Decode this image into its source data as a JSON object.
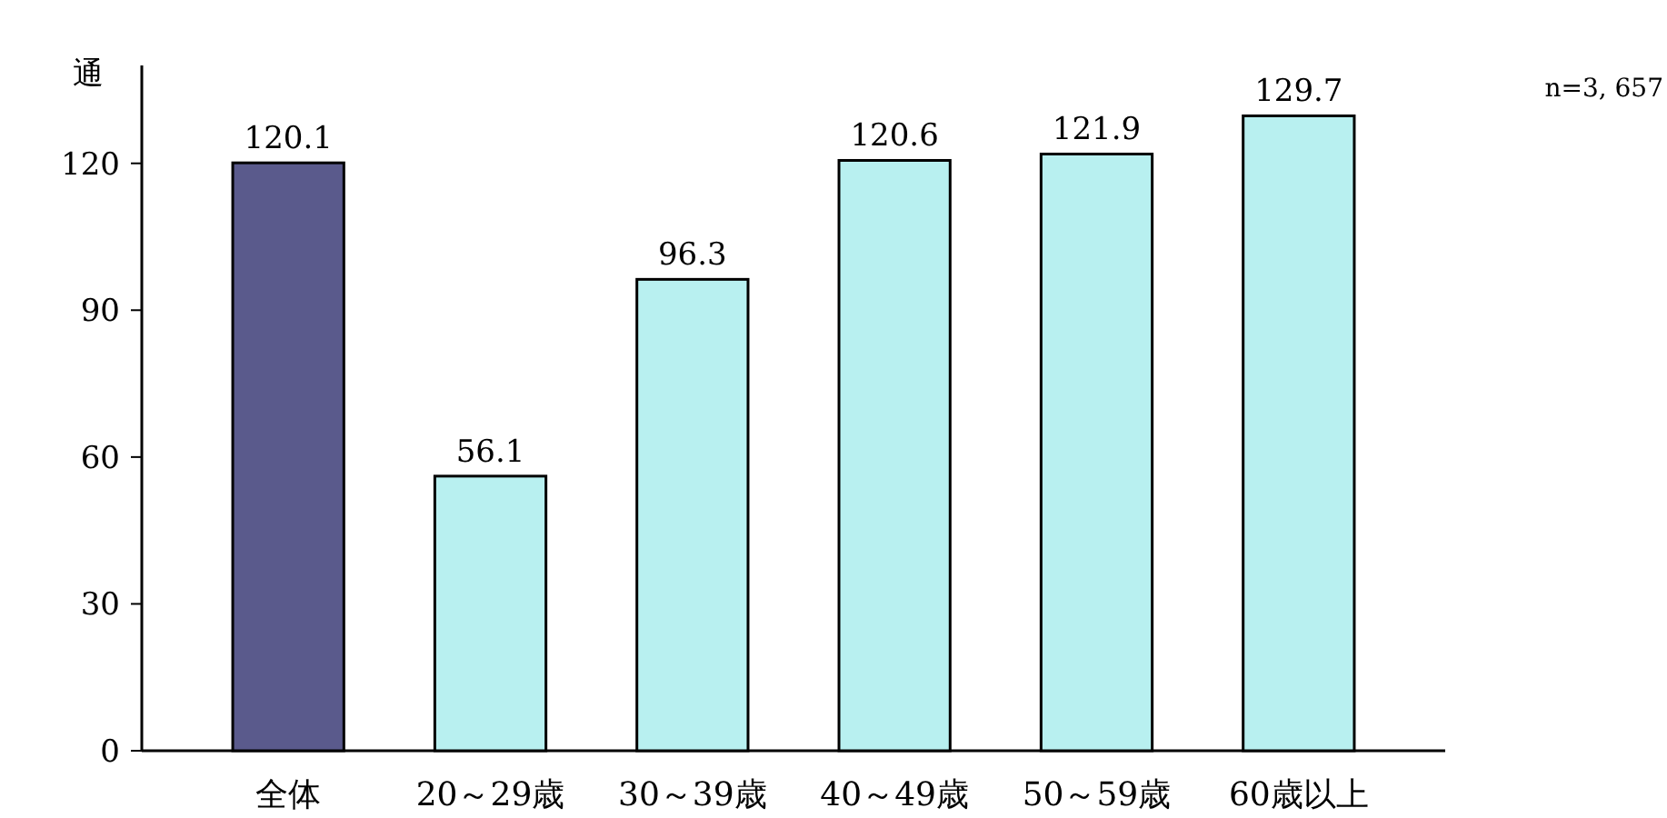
{
  "chart_data": {
    "type": "bar",
    "categories": [
      "全体",
      "20～29歳",
      "30～39歳",
      "40～49歳",
      "50～59歳",
      "60歳以上"
    ],
    "values": [
      120.1,
      56.1,
      96.3,
      120.6,
      121.9,
      129.7
    ],
    "colors": [
      "#5a5a8c",
      "#b8f0f0",
      "#b8f0f0",
      "#b8f0f0",
      "#b8f0f0",
      "#b8f0f0"
    ],
    "ylim": [
      0,
      140
    ],
    "yticks": [
      0,
      30,
      60,
      90,
      120
    ],
    "ylabel": "通",
    "annotations": [
      "n=3, 657"
    ],
    "data_labels": true,
    "grid": false
  }
}
